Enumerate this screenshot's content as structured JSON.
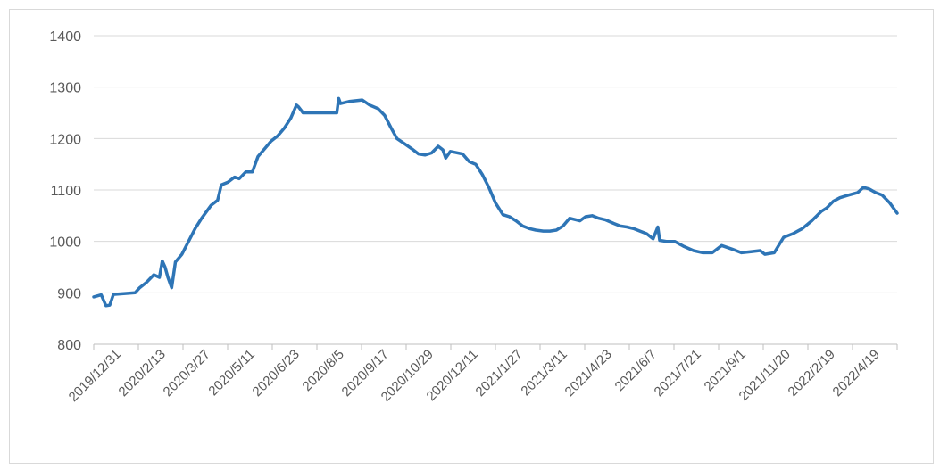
{
  "chart_data": {
    "type": "line",
    "title": "",
    "xlabel": "",
    "ylabel": "",
    "ylim": [
      800,
      1400
    ],
    "yticks": [
      800,
      900,
      1000,
      1100,
      1200,
      1300,
      1400
    ],
    "grid": true,
    "legend": "none",
    "x_tick_labels": [
      "2019/12/31",
      "2020/2/13",
      "2020/3/27",
      "2020/5/11",
      "2020/6/23",
      "2020/8/5",
      "2020/9/17",
      "2020/10/29",
      "2020/12/11",
      "2021/1/27",
      "2021/3/11",
      "2021/4/23",
      "2021/6/7",
      "2021/7/21",
      "2021/9/1",
      "2021/11/20",
      "2022/2/19",
      "2022/4/19"
    ],
    "series": [
      {
        "color": "#2e75b6",
        "points": [
          [
            "2019/12/31",
            892
          ],
          [
            "2020/1/8",
            896
          ],
          [
            "2020/1/13",
            875
          ],
          [
            "2020/1/17",
            876
          ],
          [
            "2020/1/21",
            897
          ],
          [
            "2020/2/13",
            900
          ],
          [
            "2020/2/18",
            910
          ],
          [
            "2020/2/25",
            920
          ],
          [
            "2020/3/4",
            935
          ],
          [
            "2020/3/10",
            930
          ],
          [
            "2020/3/13",
            962
          ],
          [
            "2020/3/16",
            950
          ],
          [
            "2020/3/19",
            930
          ],
          [
            "2020/3/23",
            910
          ],
          [
            "2020/3/27",
            960
          ],
          [
            "2020/4/3",
            975
          ],
          [
            "2020/4/10",
            1000
          ],
          [
            "2020/4/17",
            1025
          ],
          [
            "2020/4/24",
            1045
          ],
          [
            "2020/5/4",
            1070
          ],
          [
            "2020/5/11",
            1080
          ],
          [
            "2020/5/15",
            1110
          ],
          [
            "2020/5/22",
            1115
          ],
          [
            "2020/5/29",
            1125
          ],
          [
            "2020/6/3",
            1122
          ],
          [
            "2020/6/10",
            1135
          ],
          [
            "2020/6/17",
            1135
          ],
          [
            "2020/6/23",
            1165
          ],
          [
            "2020/6/30",
            1180
          ],
          [
            "2020/7/7",
            1195
          ],
          [
            "2020/7/14",
            1205
          ],
          [
            "2020/7/21",
            1220
          ],
          [
            "2020/7/28",
            1240
          ],
          [
            "2020/8/3",
            1265
          ],
          [
            "2020/8/5",
            1262
          ],
          [
            "2020/8/10",
            1250
          ],
          [
            "2020/8/20",
            1250
          ],
          [
            "2020/9/1",
            1250
          ],
          [
            "2020/9/15",
            1250
          ],
          [
            "2020/9/17",
            1278
          ],
          [
            "2020/9/19",
            1268
          ],
          [
            "2020/9/28",
            1272
          ],
          [
            "2020/10/12",
            1275
          ],
          [
            "2020/10/20",
            1265
          ],
          [
            "2020/10/29",
            1258
          ],
          [
            "2020/11/5",
            1245
          ],
          [
            "2020/11/12",
            1220
          ],
          [
            "2020/11/18",
            1200
          ],
          [
            "2020/11/26",
            1190
          ],
          [
            "2020/12/4",
            1180
          ],
          [
            "2020/12/11",
            1170
          ],
          [
            "2020/12/18",
            1168
          ],
          [
            "2020/12/25",
            1172
          ],
          [
            "2021/1/1",
            1185
          ],
          [
            "2021/1/6",
            1178
          ],
          [
            "2021/1/9",
            1162
          ],
          [
            "2021/1/14",
            1175
          ],
          [
            "2021/1/27",
            1170
          ],
          [
            "2021/2/3",
            1155
          ],
          [
            "2021/2/10",
            1150
          ],
          [
            "2021/2/17",
            1130
          ],
          [
            "2021/2/24",
            1105
          ],
          [
            "2021/3/3",
            1075
          ],
          [
            "2021/3/11",
            1052
          ],
          [
            "2021/3/18",
            1048
          ],
          [
            "2021/3/25",
            1040
          ],
          [
            "2021/4/1",
            1030
          ],
          [
            "2021/4/8",
            1025
          ],
          [
            "2021/4/15",
            1022
          ],
          [
            "2021/4/23",
            1020
          ],
          [
            "2021/4/30",
            1020
          ],
          [
            "2021/5/7",
            1022
          ],
          [
            "2021/5/14",
            1030
          ],
          [
            "2021/5/21",
            1045
          ],
          [
            "2021/6/1",
            1040
          ],
          [
            "2021/6/7",
            1048
          ],
          [
            "2021/6/14",
            1050
          ],
          [
            "2021/6/21",
            1045
          ],
          [
            "2021/6/28",
            1042
          ],
          [
            "2021/7/7",
            1035
          ],
          [
            "2021/7/14",
            1030
          ],
          [
            "2021/7/21",
            1028
          ],
          [
            "2021/7/28",
            1025
          ],
          [
            "2021/8/4",
            1020
          ],
          [
            "2021/8/11",
            1015
          ],
          [
            "2021/8/18",
            1005
          ],
          [
            "2021/8/23",
            1028
          ],
          [
            "2021/8/25",
            1002
          ],
          [
            "2021/9/1",
            1000
          ],
          [
            "2021/9/10",
            1000
          ],
          [
            "2021/9/20",
            990
          ],
          [
            "2021/9/30",
            982
          ],
          [
            "2021/10/10",
            978
          ],
          [
            "2021/10/20",
            978
          ],
          [
            "2021/10/30",
            992
          ],
          [
            "2021/11/10",
            985
          ],
          [
            "2021/11/20",
            978
          ],
          [
            "2021/11/30",
            980
          ],
          [
            "2021/12/10",
            982
          ],
          [
            "2021/12/15",
            975
          ],
          [
            "2021/12/25",
            978
          ],
          [
            "2022/1/4",
            1008
          ],
          [
            "2022/1/14",
            1015
          ],
          [
            "2022/1/24",
            1025
          ],
          [
            "2022/2/3",
            1040
          ],
          [
            "2022/2/13",
            1058
          ],
          [
            "2022/2/19",
            1065
          ],
          [
            "2022/2/26",
            1078
          ],
          [
            "2022/3/5",
            1085
          ],
          [
            "2022/3/14",
            1090
          ],
          [
            "2022/3/24",
            1095
          ],
          [
            "2022/3/30",
            1105
          ],
          [
            "2022/4/5",
            1102
          ],
          [
            "2022/4/12",
            1095
          ],
          [
            "2022/4/19",
            1090
          ],
          [
            "2022/4/27",
            1075
          ],
          [
            "2022/5/5",
            1055
          ]
        ]
      }
    ]
  }
}
